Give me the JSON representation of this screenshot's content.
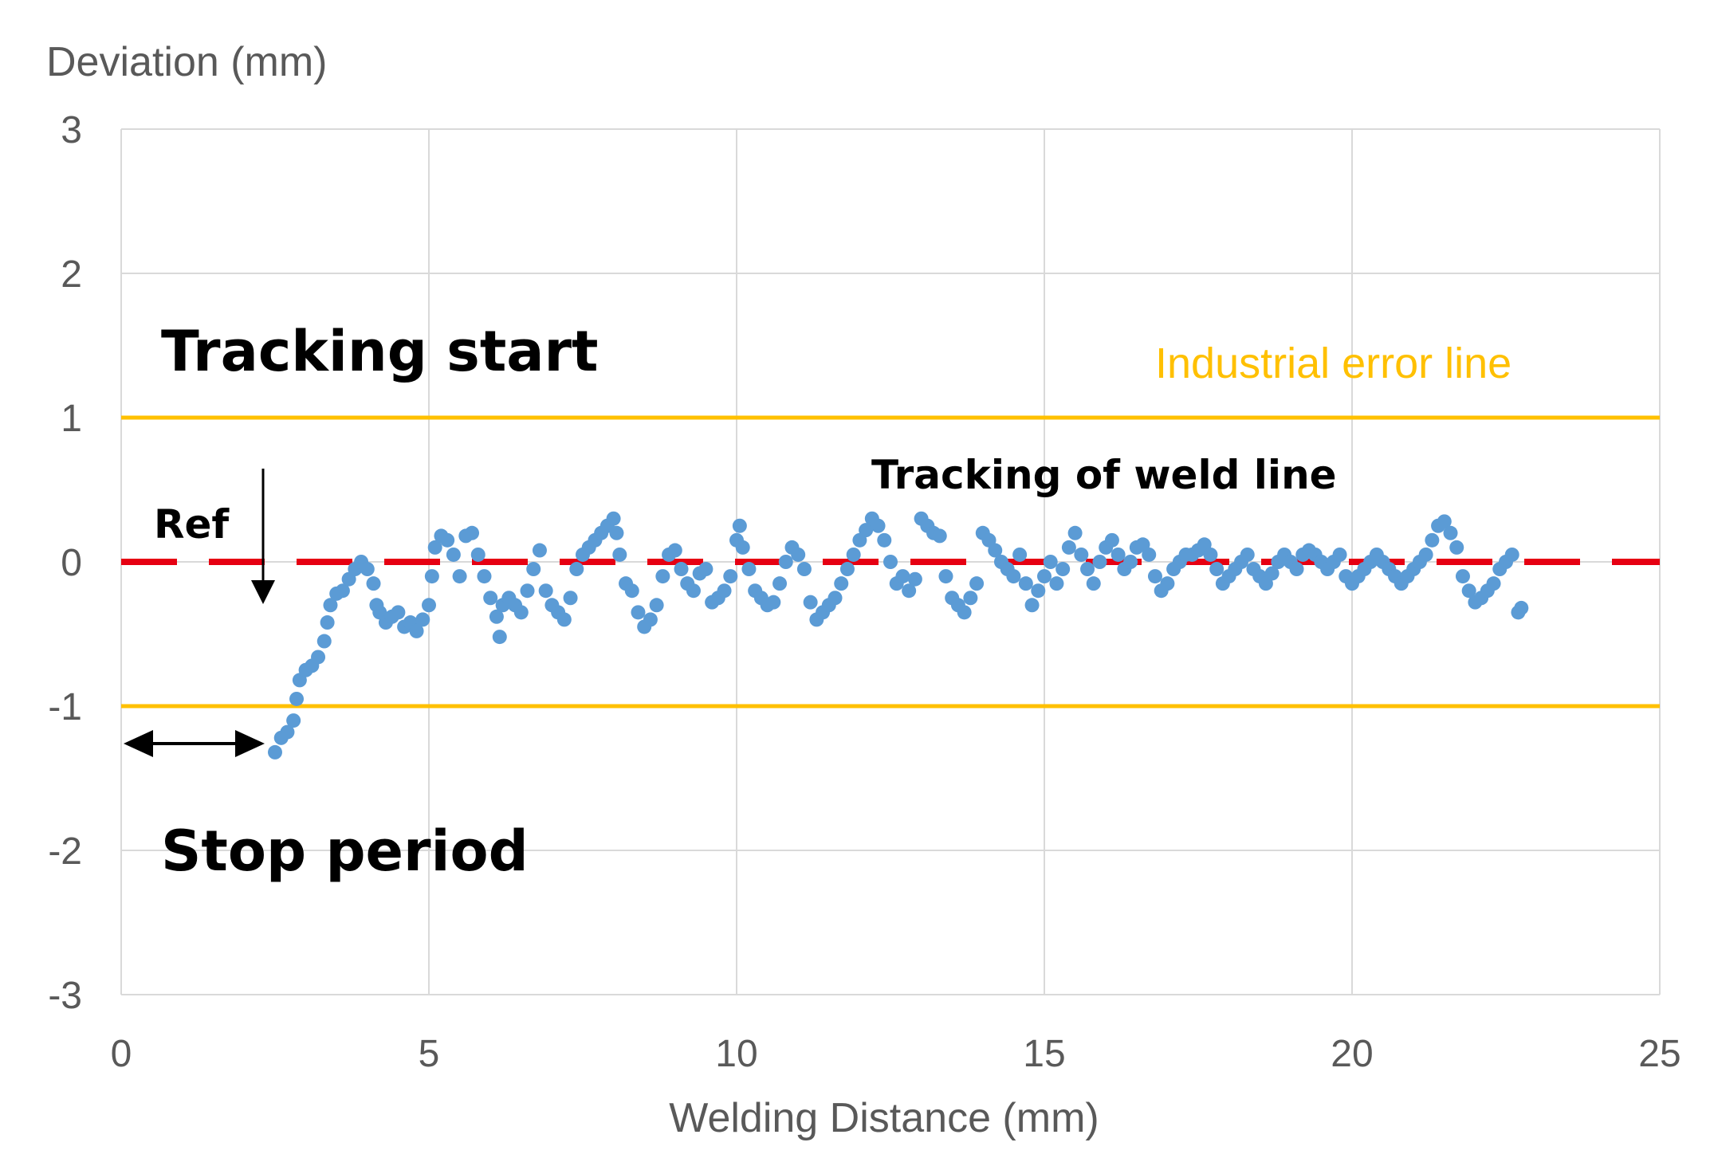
{
  "chart_data": {
    "type": "scatter",
    "title": "",
    "xlabel": "Welding Distance (mm)",
    "ylabel": "Deviation (mm)",
    "xlim": [
      0,
      25
    ],
    "ylim": [
      -3,
      3
    ],
    "xticks": [
      0,
      5,
      10,
      15,
      20,
      25
    ],
    "yticks": [
      3,
      2,
      1,
      0,
      -1,
      -2,
      -3
    ],
    "xtick_labels": [
      "0",
      "5",
      "10",
      "15",
      "20",
      "25"
    ],
    "ytick_labels": [
      "3",
      "2",
      "1",
      "0",
      "-1",
      "-2",
      "-3"
    ],
    "grid": true,
    "reference_lines": [
      {
        "name": "Industrial error line",
        "y": 1,
        "color": "#FFC000",
        "style": "solid"
      },
      {
        "name": "Industrial error line",
        "y": -1,
        "color": "#FFC000",
        "style": "solid"
      },
      {
        "name": "Ref",
        "y": 0,
        "color": "#E60012",
        "style": "dashed"
      }
    ],
    "series": [
      {
        "name": "Tracking of weld line",
        "color": "#5B9BD5",
        "points": [
          [
            2.5,
            -1.32
          ],
          [
            2.6,
            -1.22
          ],
          [
            2.7,
            -1.18
          ],
          [
            2.8,
            -1.1
          ],
          [
            2.85,
            -0.95
          ],
          [
            2.9,
            -0.82
          ],
          [
            3.0,
            -0.75
          ],
          [
            3.1,
            -0.72
          ],
          [
            3.2,
            -0.66
          ],
          [
            3.3,
            -0.55
          ],
          [
            3.35,
            -0.42
          ],
          [
            3.4,
            -0.3
          ],
          [
            3.5,
            -0.22
          ],
          [
            3.6,
            -0.2
          ],
          [
            3.7,
            -0.12
          ],
          [
            3.8,
            -0.05
          ],
          [
            3.9,
            0.0
          ],
          [
            4.0,
            -0.05
          ],
          [
            4.1,
            -0.15
          ],
          [
            4.15,
            -0.3
          ],
          [
            4.2,
            -0.35
          ],
          [
            4.3,
            -0.42
          ],
          [
            4.4,
            -0.38
          ],
          [
            4.5,
            -0.35
          ],
          [
            4.6,
            -0.45
          ],
          [
            4.7,
            -0.42
          ],
          [
            4.8,
            -0.48
          ],
          [
            4.9,
            -0.4
          ],
          [
            5.0,
            -0.3
          ],
          [
            5.05,
            -0.1
          ],
          [
            5.1,
            0.1
          ],
          [
            5.2,
            0.18
          ],
          [
            5.3,
            0.15
          ],
          [
            5.4,
            0.05
          ],
          [
            5.5,
            -0.1
          ],
          [
            5.6,
            0.18
          ],
          [
            5.7,
            0.2
          ],
          [
            5.8,
            0.05
          ],
          [
            5.9,
            -0.1
          ],
          [
            6.0,
            -0.25
          ],
          [
            6.1,
            -0.38
          ],
          [
            6.15,
            -0.52
          ],
          [
            6.2,
            -0.3
          ],
          [
            6.3,
            -0.25
          ],
          [
            6.4,
            -0.3
          ],
          [
            6.5,
            -0.35
          ],
          [
            6.6,
            -0.2
          ],
          [
            6.7,
            -0.05
          ],
          [
            6.8,
            0.08
          ],
          [
            6.9,
            -0.2
          ],
          [
            7.0,
            -0.3
          ],
          [
            7.1,
            -0.35
          ],
          [
            7.2,
            -0.4
          ],
          [
            7.3,
            -0.25
          ],
          [
            7.4,
            -0.05
          ],
          [
            7.5,
            0.05
          ],
          [
            7.6,
            0.1
          ],
          [
            7.7,
            0.15
          ],
          [
            7.8,
            0.2
          ],
          [
            7.9,
            0.25
          ],
          [
            8.0,
            0.3
          ],
          [
            8.05,
            0.2
          ],
          [
            8.1,
            0.05
          ],
          [
            8.2,
            -0.15
          ],
          [
            8.3,
            -0.2
          ],
          [
            8.4,
            -0.35
          ],
          [
            8.5,
            -0.45
          ],
          [
            8.6,
            -0.4
          ],
          [
            8.7,
            -0.3
          ],
          [
            8.8,
            -0.1
          ],
          [
            8.9,
            0.05
          ],
          [
            9.0,
            0.08
          ],
          [
            9.1,
            -0.05
          ],
          [
            9.2,
            -0.15
          ],
          [
            9.3,
            -0.2
          ],
          [
            9.4,
            -0.08
          ],
          [
            9.5,
            -0.05
          ],
          [
            9.6,
            -0.28
          ],
          [
            9.7,
            -0.25
          ],
          [
            9.8,
            -0.2
          ],
          [
            9.9,
            -0.1
          ],
          [
            10.0,
            0.15
          ],
          [
            10.05,
            0.25
          ],
          [
            10.1,
            0.1
          ],
          [
            10.2,
            -0.05
          ],
          [
            10.3,
            -0.2
          ],
          [
            10.4,
            -0.25
          ],
          [
            10.5,
            -0.3
          ],
          [
            10.6,
            -0.28
          ],
          [
            10.7,
            -0.15
          ],
          [
            10.8,
            0.0
          ],
          [
            10.9,
            0.1
          ],
          [
            11.0,
            0.05
          ],
          [
            11.1,
            -0.05
          ],
          [
            11.2,
            -0.28
          ],
          [
            11.3,
            -0.4
          ],
          [
            11.4,
            -0.35
          ],
          [
            11.5,
            -0.3
          ],
          [
            11.6,
            -0.25
          ],
          [
            11.7,
            -0.15
          ],
          [
            11.8,
            -0.05
          ],
          [
            11.9,
            0.05
          ],
          [
            12.0,
            0.15
          ],
          [
            12.1,
            0.22
          ],
          [
            12.2,
            0.3
          ],
          [
            12.3,
            0.25
          ],
          [
            12.4,
            0.15
          ],
          [
            12.5,
            0.0
          ],
          [
            12.6,
            -0.15
          ],
          [
            12.7,
            -0.1
          ],
          [
            12.8,
            -0.2
          ],
          [
            12.9,
            -0.12
          ],
          [
            13.0,
            0.3
          ],
          [
            13.1,
            0.25
          ],
          [
            13.2,
            0.2
          ],
          [
            13.3,
            0.18
          ],
          [
            13.4,
            -0.1
          ],
          [
            13.5,
            -0.25
          ],
          [
            13.6,
            -0.3
          ],
          [
            13.7,
            -0.35
          ],
          [
            13.8,
            -0.25
          ],
          [
            13.9,
            -0.15
          ],
          [
            14.0,
            0.2
          ],
          [
            14.1,
            0.15
          ],
          [
            14.2,
            0.08
          ],
          [
            14.3,
            0.0
          ],
          [
            14.4,
            -0.05
          ],
          [
            14.5,
            -0.1
          ],
          [
            14.6,
            0.05
          ],
          [
            14.7,
            -0.15
          ],
          [
            14.8,
            -0.3
          ],
          [
            14.9,
            -0.2
          ],
          [
            15.0,
            -0.1
          ],
          [
            15.1,
            0.0
          ],
          [
            15.2,
            -0.15
          ],
          [
            15.3,
            -0.05
          ],
          [
            15.4,
            0.1
          ],
          [
            15.5,
            0.2
          ],
          [
            15.6,
            0.05
          ],
          [
            15.7,
            -0.05
          ],
          [
            15.8,
            -0.15
          ],
          [
            15.9,
            0.0
          ],
          [
            16.0,
            0.1
          ],
          [
            16.1,
            0.15
          ],
          [
            16.2,
            0.05
          ],
          [
            16.3,
            -0.05
          ],
          [
            16.4,
            0.0
          ],
          [
            16.5,
            0.1
          ],
          [
            16.6,
            0.12
          ],
          [
            16.7,
            0.05
          ],
          [
            16.8,
            -0.1
          ],
          [
            16.9,
            -0.2
          ],
          [
            17.0,
            -0.15
          ],
          [
            17.1,
            -0.05
          ],
          [
            17.2,
            0.0
          ],
          [
            17.3,
            0.05
          ],
          [
            17.4,
            0.05
          ],
          [
            17.5,
            0.08
          ],
          [
            17.6,
            0.12
          ],
          [
            17.7,
            0.05
          ],
          [
            17.8,
            -0.05
          ],
          [
            17.9,
            -0.15
          ],
          [
            18.0,
            -0.1
          ],
          [
            18.1,
            -0.05
          ],
          [
            18.2,
            0.0
          ],
          [
            18.3,
            0.05
          ],
          [
            18.4,
            -0.05
          ],
          [
            18.5,
            -0.1
          ],
          [
            18.6,
            -0.15
          ],
          [
            18.7,
            -0.08
          ],
          [
            18.8,
            0.0
          ],
          [
            18.9,
            0.05
          ],
          [
            19.0,
            0.0
          ],
          [
            19.1,
            -0.05
          ],
          [
            19.2,
            0.05
          ],
          [
            19.3,
            0.08
          ],
          [
            19.4,
            0.05
          ],
          [
            19.5,
            0.0
          ],
          [
            19.6,
            -0.05
          ],
          [
            19.7,
            0.0
          ],
          [
            19.8,
            0.05
          ],
          [
            19.9,
            -0.1
          ],
          [
            20.0,
            -0.15
          ],
          [
            20.1,
            -0.1
          ],
          [
            20.2,
            -0.05
          ],
          [
            20.3,
            0.0
          ],
          [
            20.4,
            0.05
          ],
          [
            20.5,
            0.0
          ],
          [
            20.6,
            -0.05
          ],
          [
            20.7,
            -0.1
          ],
          [
            20.8,
            -0.15
          ],
          [
            20.9,
            -0.1
          ],
          [
            21.0,
            -0.05
          ],
          [
            21.1,
            0.0
          ],
          [
            21.2,
            0.05
          ],
          [
            21.3,
            0.15
          ],
          [
            21.4,
            0.25
          ],
          [
            21.5,
            0.28
          ],
          [
            21.6,
            0.2
          ],
          [
            21.7,
            0.1
          ],
          [
            21.8,
            -0.1
          ],
          [
            21.9,
            -0.2
          ],
          [
            22.0,
            -0.28
          ],
          [
            22.1,
            -0.25
          ],
          [
            22.2,
            -0.2
          ],
          [
            22.3,
            -0.15
          ],
          [
            22.4,
            -0.05
          ],
          [
            22.5,
            0.0
          ],
          [
            22.6,
            0.05
          ],
          [
            22.7,
            -0.35
          ],
          [
            22.75,
            -0.32
          ]
        ]
      }
    ],
    "annotations": [
      {
        "text": "Tracking start"
      },
      {
        "text": "Stop period"
      },
      {
        "text": "Ref"
      },
      {
        "text": "Tracking of weld line"
      },
      {
        "text": "Industrial error line"
      }
    ],
    "legend": "none"
  }
}
